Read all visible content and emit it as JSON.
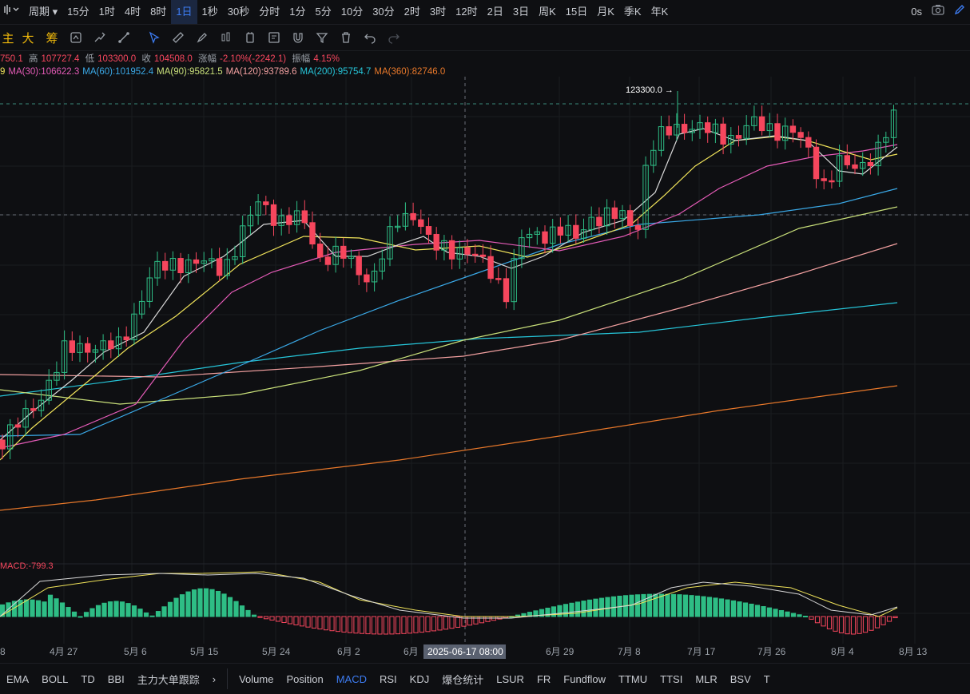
{
  "topbar": {
    "intervals": [
      "周期",
      "15分",
      "1时",
      "4时",
      "8时",
      "1日",
      "1秒",
      "30秒",
      "分时",
      "1分",
      "5分",
      "10分",
      "30分",
      "2时",
      "3时",
      "12时",
      "2日",
      "3日",
      "周K",
      "15日",
      "月K",
      "季K",
      "年K"
    ],
    "active_interval": "1日",
    "countdown": "0s"
  },
  "toolbar": {
    "left_tools": [
      "主",
      "大",
      "筹"
    ]
  },
  "info": {
    "open": "750.1",
    "high_label": "高",
    "high": "107727.4",
    "low_label": "低",
    "low": "103300.0",
    "close_label": "收",
    "close": "104508.0",
    "change_label": "涨幅",
    "change": "-2.10%(-2242.1)",
    "amp_label": "振幅",
    "amp": "4.15%"
  },
  "ma": [
    {
      "label": "9",
      "color": "#f0e35a"
    },
    {
      "label": "MA(30):106622.3",
      "color": "#e45bb7"
    },
    {
      "label": "MA(60):101952.4",
      "color": "#3aa8e6"
    },
    {
      "label": "MA(90):95821.5",
      "color": "#c9e07a"
    },
    {
      "label": "MA(120):93789.6",
      "color": "#f2a0a0"
    },
    {
      "label": "MA(200):95754.7",
      "color": "#26c6da"
    },
    {
      "label": "MA(360):82746.0",
      "color": "#e8782a"
    }
  ],
  "chart_data": {
    "type": "candlestick",
    "high_marker": "123300.0 →",
    "macd_label": "MACD:-799.3",
    "x_labels": [
      "8",
      "4月 27",
      "5月 6",
      "5月 15",
      "5月 24",
      "6月 2",
      "6月",
      "6月 29",
      "7月 8",
      "7月 17",
      "7月 26",
      "8月 4",
      "8月 13"
    ],
    "crosshair_label": "2025-06-17 08:00"
  },
  "bottombar": {
    "left": [
      "EMA",
      "BOLL",
      "TD",
      "BBI",
      "主力大单跟踪"
    ],
    "right": [
      "Volume",
      "Position",
      "MACD",
      "RSI",
      "KDJ",
      "爆仓统计",
      "LSUR",
      "FR",
      "Fundflow",
      "TTMU",
      "TTSI",
      "MLR",
      "BSV",
      "T"
    ],
    "active": "MACD"
  },
  "colors": {
    "up": "#2ebd85",
    "down": "#f6465d",
    "accent": "#3d7cf2",
    "gold": "#f0b90b"
  }
}
